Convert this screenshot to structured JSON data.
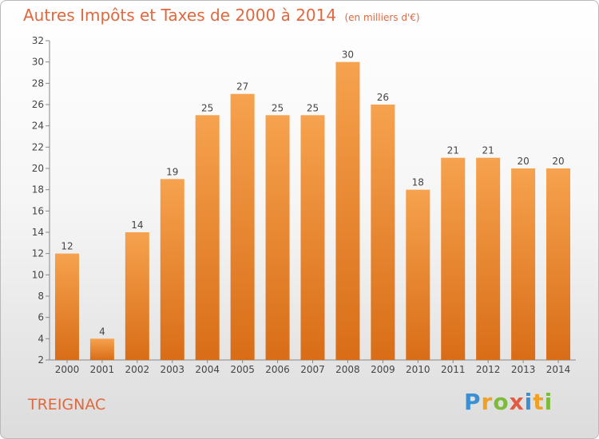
{
  "header": {
    "title": "Autres Impôts et Taxes de 2000 à 2014",
    "unit": "(en milliers d'€)"
  },
  "footer": {
    "place": "TREIGNAC",
    "logo_text": "Proxiti"
  },
  "colors": {
    "bar_light": "#f6a24e",
    "bar_dark": "#d96d17",
    "title": "#e1683e"
  },
  "chart_data": {
    "type": "bar",
    "title": "Autres Impôts et Taxes de 2000 à 2014",
    "xlabel": "",
    "ylabel": "",
    "categories": [
      "2000",
      "2001",
      "2002",
      "2003",
      "2004",
      "2005",
      "2006",
      "2007",
      "2008",
      "2009",
      "2010",
      "2011",
      "2012",
      "2013",
      "2014"
    ],
    "values": [
      12,
      4,
      14,
      19,
      25,
      27,
      25,
      25,
      30,
      26,
      18,
      21,
      21,
      20,
      20
    ],
    "ylim": [
      2,
      32
    ],
    "yticks": [
      2,
      4,
      6,
      8,
      10,
      12,
      14,
      16,
      18,
      20,
      22,
      24,
      26,
      28,
      30,
      32
    ],
    "grid": false,
    "legend": "none"
  }
}
